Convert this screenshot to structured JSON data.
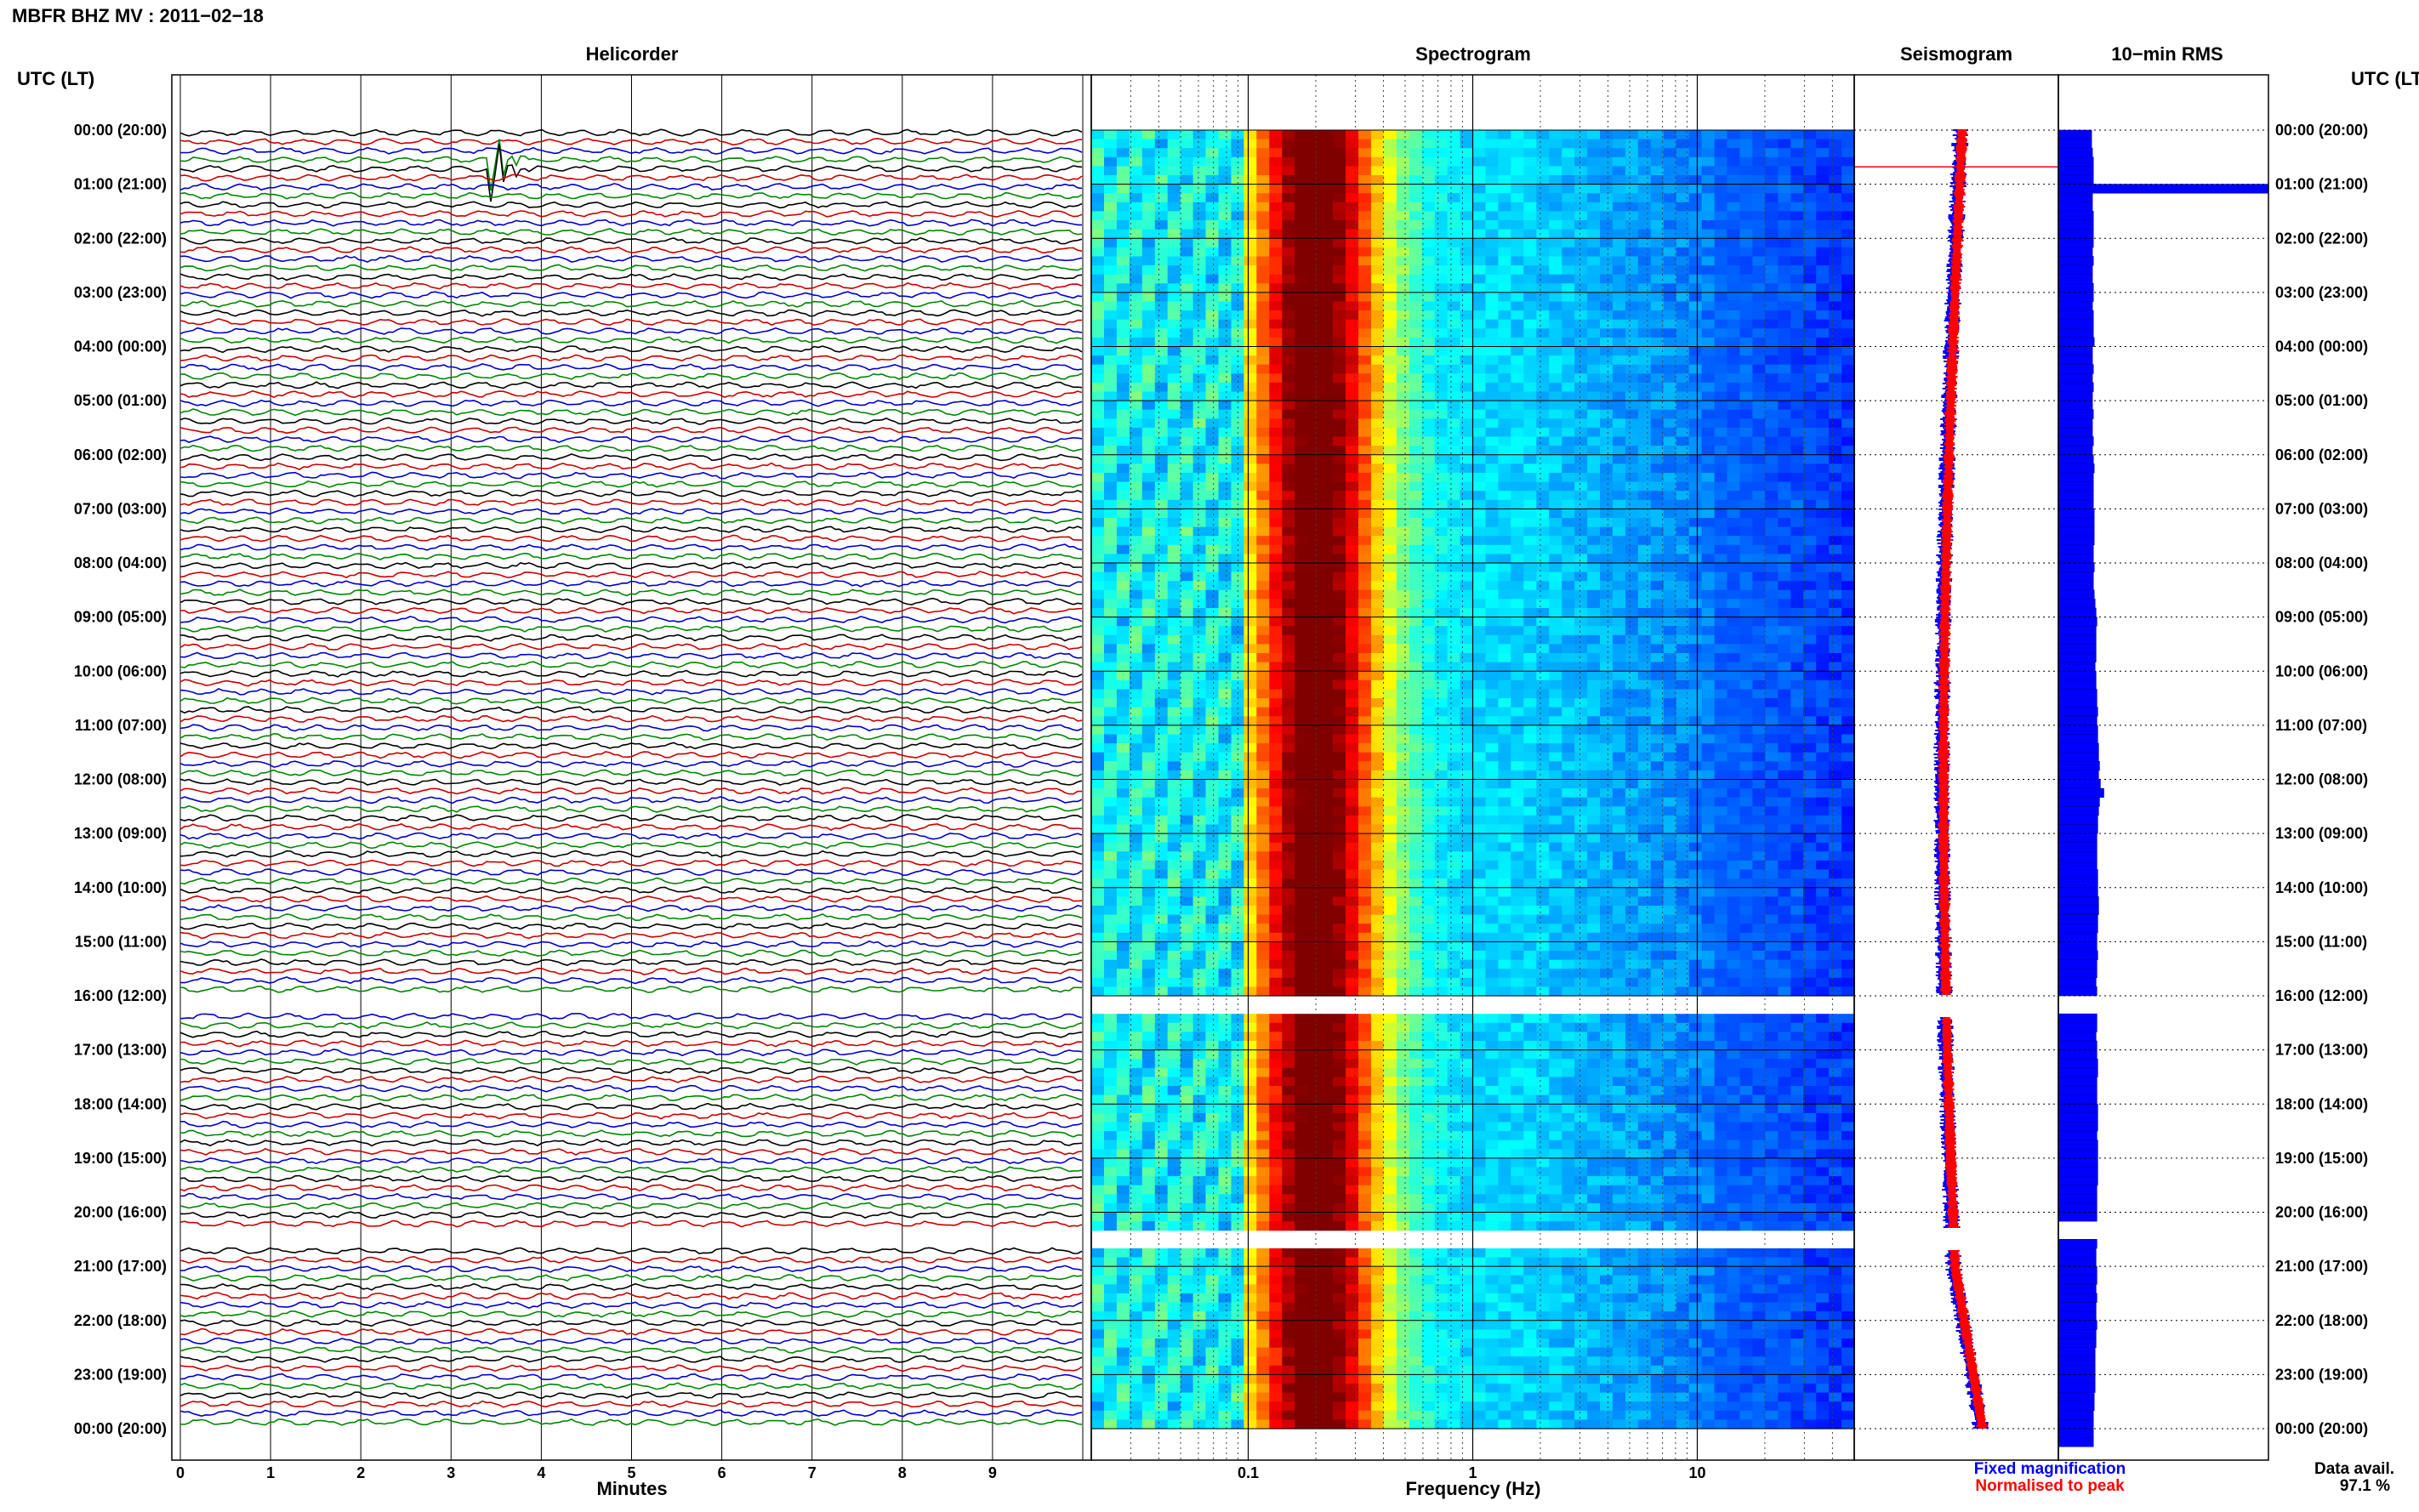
{
  "title": "MBFR BHZ MV : 2011−02−18",
  "time_axis_label": "UTC (LT)",
  "panels": {
    "helicorder": "Helicorder",
    "spectrogram": "Spectrogram",
    "seismogram": "Seismogram",
    "rms": "10−min RMS"
  },
  "helicorder": {
    "xlabel": "Minutes",
    "ticks": [
      "0",
      "1",
      "2",
      "3",
      "4",
      "5",
      "6",
      "7",
      "8",
      "9"
    ],
    "trace_colors": [
      "#000000",
      "#cc0000",
      "#0000cc",
      "#008800"
    ],
    "event_hour": 0.6,
    "event_minute": 3.5
  },
  "spectrogram": {
    "xlabel": "Frequency (Hz)",
    "xscale": "log",
    "ticks": [
      "0.1",
      "1",
      "10"
    ],
    "xlim": [
      0.02,
      50
    ]
  },
  "seismogram_legend": {
    "fixed": "Fixed magnification",
    "fixed_color": "#0000ff",
    "normalised": "Normalised to peak",
    "normalised_color": "#ff0000"
  },
  "data_avail": {
    "label": "Data avail.",
    "value": "97.1 %"
  },
  "chart_data": {
    "type": "heatmap",
    "title": "MBFR BHZ MV : 2011−02−18",
    "time_labels": [
      "00:00 (20:00)",
      "01:00 (21:00)",
      "02:00 (22:00)",
      "03:00 (23:00)",
      "04:00 (00:00)",
      "05:00 (01:00)",
      "06:00 (02:00)",
      "07:00 (03:00)",
      "08:00 (04:00)",
      "09:00 (05:00)",
      "10:00 (06:00)",
      "11:00 (07:00)",
      "12:00 (08:00)",
      "13:00 (09:00)",
      "14:00 (10:00)",
      "15:00 (11:00)",
      "16:00 (12:00)",
      "17:00 (13:00)",
      "18:00 (14:00)",
      "19:00 (15:00)",
      "20:00 (16:00)",
      "21:00 (17:00)",
      "22:00 (18:00)",
      "23:00 (19:00)",
      "00:00 (20:00)"
    ],
    "data_gaps_utc_hours": [
      [
        16.0,
        16.4
      ],
      [
        20.3,
        20.7
      ]
    ],
    "spectral_peak_hz": 0.2,
    "rms_10min": [
      0.38,
      0.38,
      0.39,
      0.4,
      0.4,
      0.4,
      2.4,
      0.39,
      0.39,
      0.4,
      0.4,
      0.4,
      0.4,
      0.39,
      0.4,
      0.39,
      0.39,
      0.4,
      0.4,
      0.39,
      0.4,
      0.4,
      0.4,
      0.41,
      0.39,
      0.39,
      0.4,
      0.39,
      0.4,
      0.39,
      0.39,
      0.4,
      0.39,
      0.39,
      0.4,
      0.39,
      0.4,
      0.41,
      0.4,
      0.4,
      0.4,
      0.4,
      0.41,
      0.41,
      0.41,
      0.41,
      0.4,
      0.4,
      0.41,
      0.4,
      0.4,
      0.41,
      0.42,
      0.43,
      0.44,
      0.43,
      0.43,
      0.43,
      0.43,
      0.42,
      0.43,
      0.43,
      0.44,
      0.44,
      0.45,
      0.44,
      0.45,
      0.45,
      0.46,
      0.46,
      0.47,
      0.46,
      0.48,
      0.52,
      0.47,
      0.46,
      0.45,
      0.45,
      0.44,
      0.44,
      0.44,
      0.44,
      0.45,
      0.45,
      0.45,
      0.46,
      0.46,
      0.45,
      0.45,
      0.44,
      0.44,
      0.45,
      0.44,
      0.44,
      0.43,
      0.44,
      0.0,
      0.0,
      0.44,
      0.44,
      0.43,
      0.44,
      0.44,
      0.45,
      0.45,
      0.44,
      0.44,
      0.44,
      0.45,
      0.45,
      0.45,
      0.44,
      0.45,
      0.45,
      0.45,
      0.45,
      0.45,
      0.44,
      0.44,
      0.44,
      0.44,
      0.0,
      0.0,
      0.44,
      0.43,
      0.43,
      0.44,
      0.44,
      0.43,
      0.44,
      0.43,
      0.43,
      0.44,
      0.43,
      0.43,
      0.42,
      0.42,
      0.42,
      0.42,
      0.42,
      0.41,
      0.41,
      0.4,
      0.4,
      0.4,
      0.4
    ]
  }
}
